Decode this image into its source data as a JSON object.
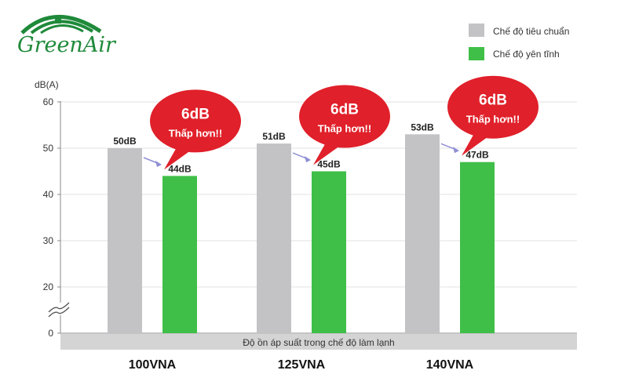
{
  "brand": {
    "logo_text": "GreenAir",
    "color": "#1f8a3a"
  },
  "legend": [
    {
      "label": "Chế độ tiêu chuẩn",
      "color": "#c3c3c6"
    },
    {
      "label": "Chế độ yên tĩnh",
      "color": "#3fbf48"
    }
  ],
  "chart_data": {
    "type": "bar",
    "ylabel": "dB(A)",
    "yticks": [
      0,
      20,
      30,
      40,
      50,
      60
    ],
    "axis_break": true,
    "categories": [
      "100VNA",
      "125VNA",
      "140VNA"
    ],
    "series": [
      {
        "name": "Chế độ tiêu chuẩn",
        "values": [
          50,
          51,
          53
        ],
        "labels": [
          "50dB",
          "51dB",
          "53dB"
        ],
        "color": "#c3c3c6"
      },
      {
        "name": "Chế độ yên tĩnh",
        "values": [
          44,
          45,
          47
        ],
        "labels": [
          "44dB",
          "45dB",
          "47dB"
        ],
        "color": "#3fbf48"
      }
    ],
    "callouts": [
      {
        "value": "6dB",
        "text": "Thấp hơn!!"
      },
      {
        "value": "6dB",
        "text": "Thấp hơn!!"
      },
      {
        "value": "6dB",
        "text": "Thấp hơn!!"
      }
    ],
    "xbar_label": "Độ ồn áp suất trong chế độ làm lạnh",
    "grid": true,
    "callout_color": "#e0202a"
  }
}
